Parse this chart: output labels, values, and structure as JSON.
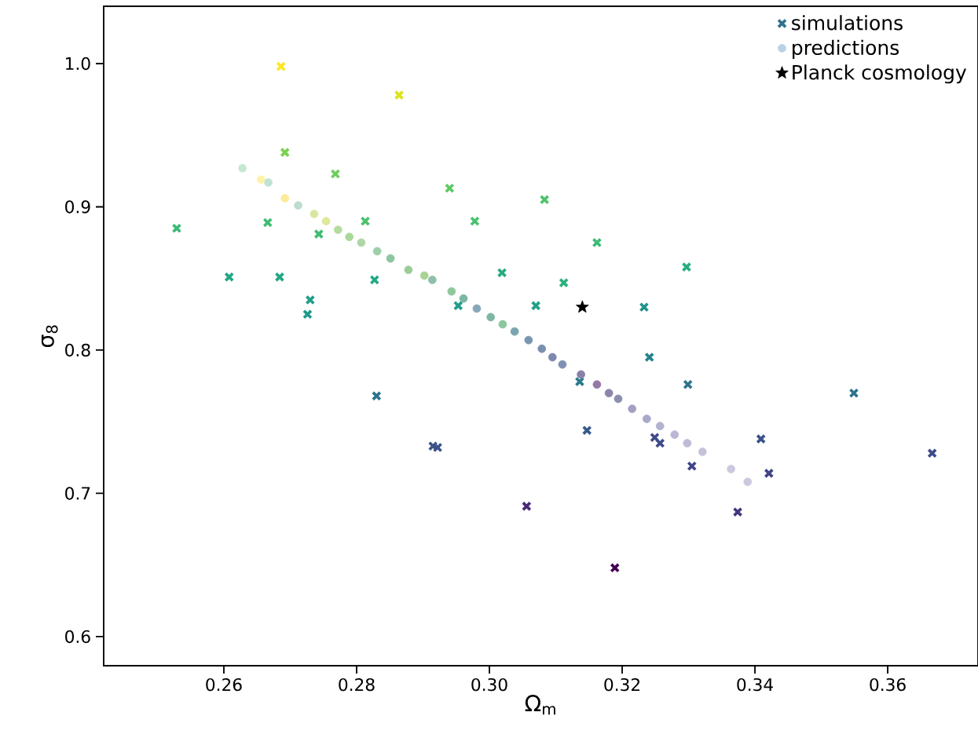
{
  "chart_data": {
    "type": "scatter",
    "xlabel": "Ω$_{m}$",
    "ylabel": "σ$_{8}$",
    "xlim": [
      0.2419,
      0.3736
    ],
    "ylim": [
      0.5797,
      1.04
    ],
    "xticks": [
      0.26,
      0.28,
      {
        "value": 0.3,
        "label": "0.30"
      },
      0.32,
      0.34,
      0.36
    ],
    "yticks": [
      0.6,
      0.7,
      0.8,
      0.9,
      {
        "value": 1.0,
        "label": "1.0"
      }
    ],
    "grid": false,
    "legend": "top right",
    "series": [
      {
        "name": "simulations",
        "marker": "cross",
        "color": "#2c728e",
        "x": [
          0.2686,
          0.2864,
          0.2692,
          0.2768,
          0.2529,
          0.2666,
          0.2743,
          0.2813,
          0.2608,
          0.2684,
          0.273,
          0.2726,
          0.2827,
          0.294,
          0.2978,
          0.3083,
          0.3019,
          0.2953,
          0.307,
          0.3112,
          0.3162,
          0.3297,
          0.3233,
          0.3241,
          0.3299,
          0.3136,
          0.283,
          0.2915,
          0.2922,
          0.3147,
          0.3249,
          0.3257,
          0.3305,
          0.3409,
          0.3421,
          0.3549,
          0.3667,
          0.3374,
          0.3189,
          0.3056
        ],
        "values": [
          0.998,
          0.978,
          0.938,
          0.923,
          0.885,
          0.889,
          0.881,
          0.89,
          0.851,
          0.851,
          0.835,
          0.825,
          0.849,
          0.913,
          0.89,
          0.905,
          0.854,
          0.831,
          0.831,
          0.847,
          0.875,
          0.858,
          0.83,
          0.795,
          0.776,
          0.778,
          0.768,
          0.733,
          0.732,
          0.744,
          0.739,
          0.735,
          0.719,
          0.738,
          0.714,
          0.77,
          0.728,
          0.687,
          0.648,
          0.691
        ],
        "colors": [
          "#fde725",
          "#dde318",
          "#7ad151",
          "#6ccd5a",
          "#3bbb75",
          "#3fbc73",
          "#3fbc73",
          "#4ac16d",
          "#22a884",
          "#22a884",
          "#1f9e89",
          "#1f9a8a",
          "#22a884",
          "#5ec962",
          "#4ac16d",
          "#4ec36b",
          "#25ab82",
          "#1f9e89",
          "#1fa187",
          "#2ab07f",
          "#3bbb75",
          "#28ae80",
          "#21918c",
          "#26828e",
          "#2c728e",
          "#297b8e",
          "#2c728e",
          "#3b528b",
          "#3b528b",
          "#38598c",
          "#3e4a89",
          "#3e4a89",
          "#414487",
          "#3b528b",
          "#414487",
          "#2c728e",
          "#3e4a89",
          "#46337f",
          "#440154",
          "#482878"
        ]
      },
      {
        "name": "predictions",
        "marker": "circle",
        "color": "#bcd1e6",
        "x": [
          0.2628,
          0.2656,
          0.2667,
          0.2692,
          0.2712,
          0.2736,
          0.2754,
          0.2772,
          0.2789,
          0.2807,
          0.2831,
          0.2851,
          0.2878,
          0.2902,
          0.2914,
          0.2943,
          0.2961,
          0.2981,
          0.3002,
          0.302,
          0.3038,
          0.3059,
          0.3079,
          0.3095,
          0.311,
          0.3138,
          0.3162,
          0.318,
          0.3194,
          0.3215,
          0.3237,
          0.3257,
          0.3279,
          0.3298,
          0.3321,
          0.3364,
          0.3389
        ],
        "values": [
          0.927,
          0.919,
          0.917,
          0.906,
          0.901,
          0.895,
          0.89,
          0.884,
          0.879,
          0.875,
          0.869,
          0.864,
          0.856,
          0.852,
          0.849,
          0.841,
          0.836,
          0.829,
          0.823,
          0.818,
          0.813,
          0.807,
          0.801,
          0.795,
          0.79,
          0.783,
          0.776,
          0.77,
          0.766,
          0.759,
          0.752,
          0.747,
          0.741,
          0.735,
          0.729,
          0.717,
          0.708
        ],
        "colors": [
          "#c5e8d5",
          "#fdf3a8",
          "#c0e3d3",
          "#fbeb9a",
          "#bcdcd0",
          "#d8e7a0",
          "#e0e89a",
          "#b5dca0",
          "#a8d89a",
          "#b0d6a8",
          "#9dcfa8",
          "#8cc6a0",
          "#9ccd98",
          "#a9d395",
          "#8fc0a8",
          "#8ec89a",
          "#7ab8a5",
          "#86a8b8",
          "#7fb5a5",
          "#8ac8a0",
          "#7aa5b0",
          "#7a95b0",
          "#7b8fb0",
          "#7c88ad",
          "#8090b2",
          "#8a80a8",
          "#9479a5",
          "#8d84aa",
          "#8c8fb0",
          "#a5a0c2",
          "#a9aac8",
          "#b3b3cf",
          "#b9b7d2",
          "#bdbbd5",
          "#c5c3da",
          "#ccc8de",
          "#ccc8de"
        ]
      },
      {
        "name": "Planck cosmology",
        "marker": "star",
        "color": "#000000",
        "x": [
          0.314
        ],
        "values": [
          0.83
        ]
      }
    ]
  }
}
